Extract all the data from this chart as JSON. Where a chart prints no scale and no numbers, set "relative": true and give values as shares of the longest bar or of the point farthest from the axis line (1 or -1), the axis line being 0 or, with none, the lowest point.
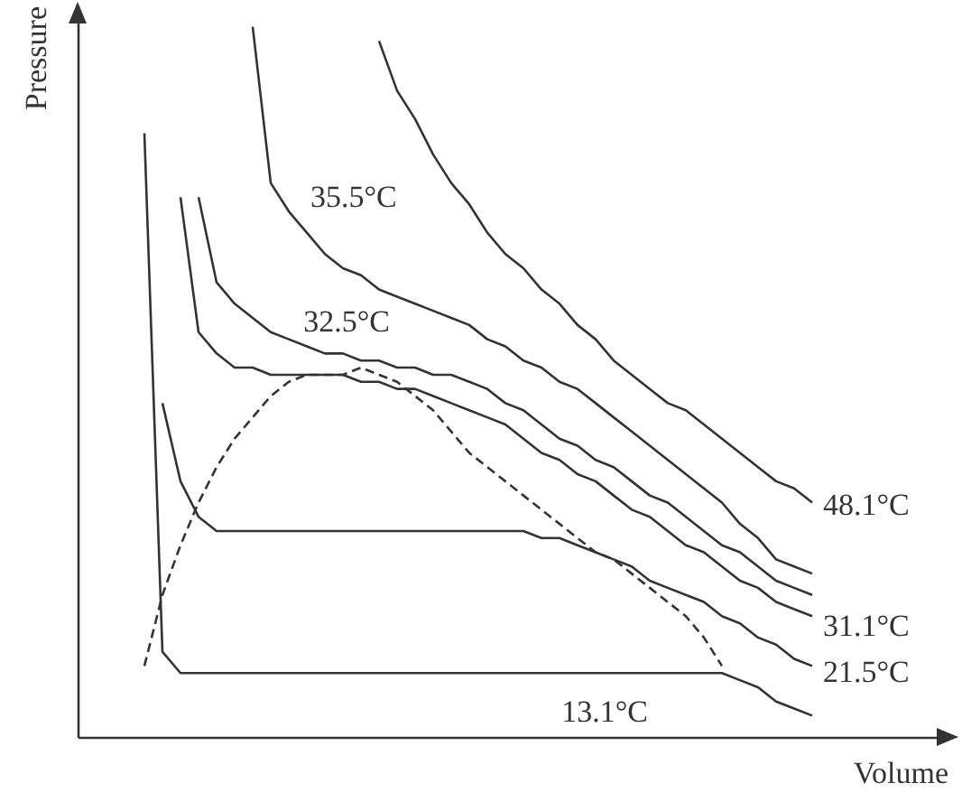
{
  "chart_data": {
    "type": "line",
    "relative": true,
    "xlabel": "Volume",
    "ylabel": "Pressure",
    "tick_labels": false,
    "categories": [
      null,
      null,
      null,
      null,
      null,
      null,
      null,
      null,
      null,
      null,
      null,
      null,
      null,
      null,
      null,
      null,
      null,
      null,
      null,
      null,
      null,
      null,
      null,
      null,
      null,
      null,
      null,
      null,
      null,
      null,
      null,
      null,
      null,
      null,
      null,
      null,
      null,
      null,
      null
    ],
    "series": [
      {
        "name": "13.1°C",
        "color": "#333333",
        "values": [
          null,
          0.85,
          0.12,
          0.09,
          0.09,
          0.09,
          0.09,
          0.09,
          0.09,
          0.09,
          0.09,
          0.09,
          0.09,
          0.09,
          0.09,
          0.09,
          0.09,
          0.09,
          0.09,
          0.09,
          0.09,
          0.09,
          0.09,
          0.09,
          0.09,
          0.09,
          0.09,
          0.09,
          0.09,
          0.09,
          0.09,
          0.09,
          0.09,
          0.09,
          0.08,
          0.07,
          0.05,
          0.04,
          0.03
        ]
      },
      {
        "name": "21.5°C",
        "color": "#333333",
        "values": [
          null,
          null,
          0.47,
          0.36,
          0.31,
          0.29,
          0.29,
          0.29,
          0.29,
          0.29,
          0.29,
          0.29,
          0.29,
          0.29,
          0.29,
          0.29,
          0.29,
          0.29,
          0.29,
          0.29,
          0.29,
          0.29,
          0.29,
          0.28,
          0.28,
          0.27,
          0.26,
          0.25,
          0.24,
          0.22,
          0.21,
          0.2,
          0.19,
          0.17,
          0.16,
          0.14,
          0.13,
          0.11,
          0.1
        ]
      },
      {
        "name": "31.1°C",
        "color": "#333333",
        "values": [
          null,
          null,
          null,
          0.76,
          0.57,
          0.54,
          0.52,
          0.52,
          0.51,
          0.51,
          0.51,
          0.51,
          0.51,
          0.5,
          0.5,
          0.49,
          0.49,
          0.48,
          0.47,
          0.46,
          0.45,
          0.44,
          0.42,
          0.4,
          0.39,
          0.37,
          0.36,
          0.34,
          0.32,
          0.31,
          0.29,
          0.27,
          0.26,
          0.24,
          0.22,
          0.21,
          0.19,
          0.18,
          0.17
        ]
      },
      {
        "name": "32.5°C",
        "color": "#333333",
        "values": [
          null,
          null,
          null,
          null,
          0.76,
          0.64,
          0.61,
          0.59,
          0.57,
          0.56,
          0.55,
          0.54,
          0.54,
          0.53,
          0.53,
          0.52,
          0.52,
          0.51,
          0.51,
          0.5,
          0.49,
          0.47,
          0.46,
          0.44,
          0.42,
          0.41,
          0.39,
          0.38,
          0.36,
          0.34,
          0.33,
          0.31,
          0.29,
          0.27,
          0.26,
          0.24,
          0.22,
          0.21,
          0.2
        ]
      },
      {
        "name": "35.5°C",
        "color": "#333333",
        "values": [
          null,
          null,
          null,
          null,
          null,
          null,
          null,
          1.0,
          0.78,
          0.74,
          0.71,
          0.68,
          0.66,
          0.65,
          0.63,
          0.62,
          0.61,
          0.6,
          0.59,
          0.58,
          0.56,
          0.55,
          0.53,
          0.52,
          0.5,
          0.49,
          0.47,
          0.45,
          0.43,
          0.41,
          0.39,
          0.37,
          0.35,
          0.33,
          0.3,
          0.28,
          0.25,
          0.24,
          0.23
        ]
      },
      {
        "name": "48.1°C",
        "color": "#333333",
        "values": [
          null,
          null,
          null,
          null,
          null,
          null,
          null,
          null,
          null,
          null,
          null,
          null,
          null,
          null,
          0.98,
          0.91,
          0.87,
          0.82,
          0.78,
          0.75,
          0.71,
          0.68,
          0.66,
          0.63,
          0.61,
          0.58,
          0.56,
          0.53,
          0.51,
          0.49,
          0.47,
          0.46,
          0.44,
          0.42,
          0.4,
          0.38,
          0.36,
          0.35,
          0.33
        ]
      },
      {
        "color": "#333333",
        "line_style": "dashed",
        "values": [
          null,
          0.1,
          0.2,
          0.27,
          0.33,
          0.38,
          0.42,
          0.45,
          0.48,
          0.5,
          0.51,
          0.51,
          0.51,
          0.52,
          0.51,
          0.5,
          0.48,
          0.46,
          0.43,
          0.4,
          0.38,
          0.36,
          0.34,
          0.32,
          0.3,
          0.28,
          0.26,
          0.25,
          0.23,
          0.21,
          0.19,
          0.17,
          0.14,
          0.1,
          null,
          null,
          null,
          null,
          null
        ]
      }
    ]
  }
}
